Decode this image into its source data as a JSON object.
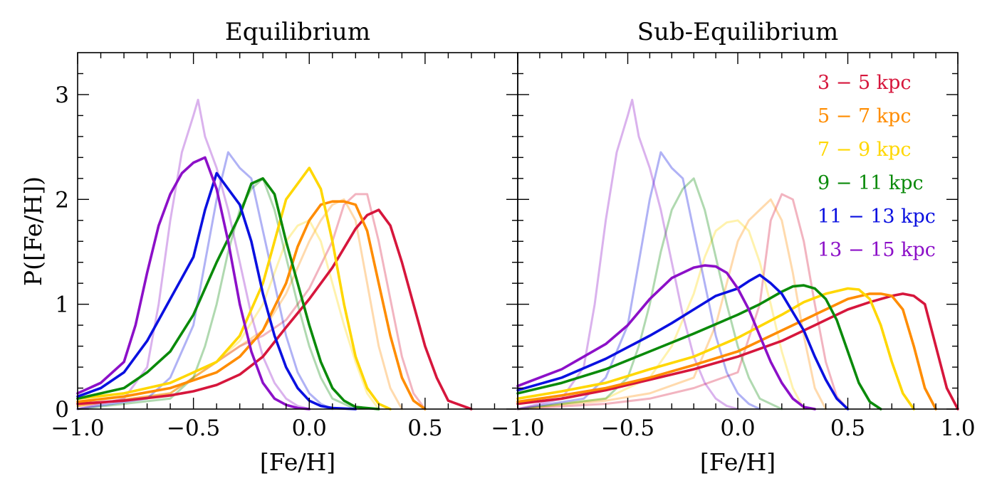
{
  "chart_data": [
    {
      "type": "line",
      "title": "Equilibrium",
      "xlabel": "[Fe/H]",
      "ylabel": "P([Fe/H])",
      "xlim": [
        -1.0,
        0.9
      ],
      "ylim": [
        0,
        3.4
      ],
      "xticks": [
        "−1.0",
        "−0.5",
        "0.0",
        "0.5"
      ],
      "yticks": [
        "0",
        "1",
        "2",
        "3"
      ],
      "grid": false,
      "series": [
        {
          "name": "3 − 5 kpc",
          "color": "#d6163c",
          "style": "solid",
          "x": [
            -1.0,
            -0.8,
            -0.6,
            -0.5,
            -0.4,
            -0.3,
            -0.2,
            -0.1,
            0.0,
            0.1,
            0.2,
            0.25,
            0.3,
            0.35,
            0.4,
            0.45,
            0.5,
            0.55,
            0.6,
            0.7
          ],
          "y": [
            0.05,
            0.08,
            0.13,
            0.17,
            0.23,
            0.33,
            0.5,
            0.78,
            1.05,
            1.35,
            1.72,
            1.85,
            1.9,
            1.75,
            1.4,
            1.0,
            0.6,
            0.3,
            0.08,
            0.0
          ]
        },
        {
          "name": "5 − 7 kpc",
          "color": "#ff8c00",
          "style": "solid",
          "x": [
            -1.0,
            -0.8,
            -0.6,
            -0.4,
            -0.3,
            -0.2,
            -0.1,
            -0.05,
            0.0,
            0.05,
            0.1,
            0.15,
            0.2,
            0.25,
            0.3,
            0.35,
            0.4,
            0.45,
            0.5
          ],
          "y": [
            0.07,
            0.12,
            0.2,
            0.35,
            0.5,
            0.75,
            1.2,
            1.55,
            1.8,
            1.95,
            1.98,
            1.98,
            1.95,
            1.7,
            1.2,
            0.7,
            0.3,
            0.08,
            0.0
          ]
        },
        {
          "name": "7 − 9 kpc",
          "color": "#ffd700",
          "style": "solid",
          "x": [
            -1.0,
            -0.8,
            -0.6,
            -0.4,
            -0.3,
            -0.2,
            -0.15,
            -0.1,
            -0.05,
            0.0,
            0.05,
            0.1,
            0.15,
            0.2,
            0.25,
            0.3,
            0.35
          ],
          "y": [
            0.1,
            0.15,
            0.25,
            0.45,
            0.7,
            1.2,
            1.6,
            2.0,
            2.15,
            2.3,
            2.1,
            1.6,
            1.0,
            0.5,
            0.2,
            0.05,
            0.0
          ]
        },
        {
          "name": "9 − 11 kpc",
          "color": "#0a8a0a",
          "style": "solid",
          "x": [
            -1.0,
            -0.8,
            -0.7,
            -0.6,
            -0.5,
            -0.4,
            -0.3,
            -0.25,
            -0.2,
            -0.15,
            -0.1,
            -0.05,
            0.0,
            0.05,
            0.1,
            0.15,
            0.2,
            0.3
          ],
          "y": [
            0.1,
            0.2,
            0.35,
            0.55,
            0.9,
            1.4,
            1.85,
            2.15,
            2.2,
            2.05,
            1.6,
            1.2,
            0.8,
            0.45,
            0.2,
            0.08,
            0.02,
            0.0
          ]
        },
        {
          "name": "11 − 13 kpc",
          "color": "#0a10e0",
          "style": "solid",
          "x": [
            -1.0,
            -0.9,
            -0.8,
            -0.7,
            -0.6,
            -0.5,
            -0.45,
            -0.4,
            -0.35,
            -0.3,
            -0.25,
            -0.2,
            -0.15,
            -0.1,
            -0.05,
            0.0,
            0.05,
            0.1,
            0.2
          ],
          "y": [
            0.12,
            0.2,
            0.35,
            0.65,
            1.05,
            1.45,
            1.9,
            2.25,
            2.1,
            1.95,
            1.6,
            1.1,
            0.7,
            0.4,
            0.2,
            0.08,
            0.03,
            0.01,
            0.0
          ]
        },
        {
          "name": "13 − 15 kpc",
          "color": "#8c10c8",
          "style": "solid",
          "x": [
            -1.0,
            -0.9,
            -0.8,
            -0.75,
            -0.7,
            -0.65,
            -0.6,
            -0.55,
            -0.5,
            -0.45,
            -0.4,
            -0.35,
            -0.3,
            -0.25,
            -0.2,
            -0.15,
            -0.1,
            -0.05,
            0.0
          ],
          "y": [
            0.15,
            0.25,
            0.45,
            0.8,
            1.3,
            1.75,
            2.05,
            2.25,
            2.35,
            2.4,
            2.1,
            1.6,
            1.0,
            0.55,
            0.25,
            0.1,
            0.04,
            0.01,
            0.0
          ]
        },
        {
          "name": "3 − 5 kpc (faint)",
          "color": "#d6163c",
          "style": "faint",
          "x": [
            -1.0,
            -0.6,
            -0.5,
            -0.4,
            -0.3,
            -0.2,
            -0.1,
            0.0,
            0.1,
            0.15,
            0.2,
            0.25,
            0.3,
            0.35,
            0.4,
            0.45,
            0.5
          ],
          "y": [
            0.03,
            0.15,
            0.3,
            0.45,
            0.6,
            0.7,
            0.85,
            1.15,
            1.6,
            1.95,
            2.05,
            2.05,
            1.6,
            1.05,
            0.5,
            0.15,
            0.0
          ]
        },
        {
          "name": "5 − 7 kpc (faint)",
          "color": "#ff8c00",
          "style": "faint",
          "x": [
            -1.0,
            -0.6,
            -0.5,
            -0.4,
            -0.3,
            -0.2,
            -0.1,
            0.0,
            0.05,
            0.1,
            0.15,
            0.2,
            0.25,
            0.3,
            0.35,
            0.4
          ],
          "y": [
            0.03,
            0.15,
            0.3,
            0.45,
            0.6,
            0.75,
            1.1,
            1.6,
            1.8,
            1.95,
            2.0,
            1.8,
            1.2,
            0.6,
            0.2,
            0.0
          ]
        },
        {
          "name": "7 − 9 kpc (faint)",
          "color": "#ffd700",
          "style": "faint",
          "x": [
            -1.0,
            -0.6,
            -0.5,
            -0.4,
            -0.3,
            -0.2,
            -0.15,
            -0.1,
            -0.05,
            0.0,
            0.05,
            0.1,
            0.15,
            0.2,
            0.25,
            0.3
          ],
          "y": [
            0.03,
            0.15,
            0.3,
            0.45,
            0.65,
            1.0,
            1.3,
            1.6,
            1.75,
            1.8,
            1.6,
            1.2,
            0.8,
            0.45,
            0.15,
            0.0
          ]
        },
        {
          "name": "9 − 11 kpc (faint)",
          "color": "#0a8a0a",
          "style": "faint",
          "x": [
            -1.0,
            -0.6,
            -0.5,
            -0.45,
            -0.4,
            -0.35,
            -0.3,
            -0.25,
            -0.2,
            -0.15,
            -0.1,
            -0.05,
            0.0,
            0.05,
            0.1,
            0.2
          ],
          "y": [
            0.0,
            0.1,
            0.3,
            0.6,
            1.0,
            1.5,
            1.9,
            2.1,
            2.2,
            1.9,
            1.45,
            1.0,
            0.6,
            0.3,
            0.1,
            0.0
          ]
        },
        {
          "name": "11 − 13 kpc (faint)",
          "color": "#0a10e0",
          "style": "faint",
          "x": [
            -1.0,
            -0.7,
            -0.6,
            -0.5,
            -0.45,
            -0.4,
            -0.35,
            -0.3,
            -0.25,
            -0.2,
            -0.15,
            -0.1,
            -0.05,
            0.0,
            0.05,
            0.1
          ],
          "y": [
            0.0,
            0.1,
            0.3,
            0.8,
            1.4,
            2.0,
            2.45,
            2.3,
            2.2,
            1.7,
            1.2,
            0.7,
            0.35,
            0.15,
            0.05,
            0.0
          ]
        },
        {
          "name": "13 − 15 kpc (faint)",
          "color": "#8c10c8",
          "style": "faint",
          "x": [
            -1.0,
            -0.8,
            -0.7,
            -0.65,
            -0.6,
            -0.55,
            -0.5,
            -0.48,
            -0.45,
            -0.4,
            -0.35,
            -0.3,
            -0.25,
            -0.2,
            -0.15,
            -0.1,
            -0.05,
            0.0
          ],
          "y": [
            0.0,
            0.1,
            0.4,
            1.0,
            1.8,
            2.45,
            2.8,
            2.95,
            2.6,
            2.3,
            1.9,
            1.4,
            0.9,
            0.5,
            0.25,
            0.1,
            0.03,
            0.0
          ]
        }
      ]
    },
    {
      "type": "line",
      "title": "Sub-Equilibrium",
      "xlabel": "[Fe/H]",
      "ylabel": "",
      "xlim": [
        -1.0,
        1.0
      ],
      "ylim": [
        0,
        3.4
      ],
      "xticks": [
        "−1.0",
        "−0.5",
        "0.0",
        "0.5",
        "1.0"
      ],
      "yticks": [],
      "grid": false,
      "legend": "top-right",
      "series": [
        {
          "name": "3 − 5 kpc",
          "color": "#d6163c",
          "style": "solid",
          "x": [
            -1.0,
            -0.8,
            -0.6,
            -0.4,
            -0.2,
            0.0,
            0.2,
            0.4,
            0.5,
            0.6,
            0.7,
            0.75,
            0.8,
            0.85,
            0.9,
            0.95,
            1.0
          ],
          "y": [
            0.05,
            0.1,
            0.18,
            0.28,
            0.38,
            0.5,
            0.65,
            0.85,
            0.95,
            1.02,
            1.08,
            1.1,
            1.08,
            1.0,
            0.6,
            0.2,
            0.0
          ]
        },
        {
          "name": "5 − 7 kpc",
          "color": "#ff8c00",
          "style": "solid",
          "x": [
            -1.0,
            -0.8,
            -0.6,
            -0.4,
            -0.2,
            0.0,
            0.2,
            0.4,
            0.5,
            0.6,
            0.65,
            0.7,
            0.75,
            0.8,
            0.85,
            0.9
          ],
          "y": [
            0.07,
            0.13,
            0.2,
            0.3,
            0.42,
            0.55,
            0.75,
            0.95,
            1.05,
            1.1,
            1.1,
            1.08,
            0.95,
            0.6,
            0.2,
            0.0
          ]
        },
        {
          "name": "7 − 9 kpc",
          "color": "#ffd700",
          "style": "solid",
          "x": [
            -1.0,
            -0.8,
            -0.6,
            -0.4,
            -0.2,
            0.0,
            0.2,
            0.3,
            0.4,
            0.5,
            0.55,
            0.6,
            0.65,
            0.7,
            0.75,
            0.8
          ],
          "y": [
            0.1,
            0.17,
            0.25,
            0.38,
            0.5,
            0.68,
            0.9,
            1.02,
            1.1,
            1.15,
            1.14,
            1.05,
            0.8,
            0.45,
            0.15,
            0.0
          ]
        },
        {
          "name": "9 − 11 kpc",
          "color": "#0a8a0a",
          "style": "solid",
          "x": [
            -1.0,
            -0.8,
            -0.6,
            -0.4,
            -0.2,
            0.0,
            0.1,
            0.2,
            0.25,
            0.3,
            0.35,
            0.4,
            0.45,
            0.5,
            0.55,
            0.6,
            0.65
          ],
          "y": [
            0.15,
            0.25,
            0.38,
            0.55,
            0.72,
            0.9,
            1.0,
            1.12,
            1.17,
            1.18,
            1.15,
            1.05,
            0.85,
            0.55,
            0.25,
            0.07,
            0.0
          ]
        },
        {
          "name": "11 − 13 kpc",
          "color": "#0a10e0",
          "style": "solid",
          "x": [
            -1.0,
            -0.8,
            -0.6,
            -0.4,
            -0.3,
            -0.2,
            -0.1,
            0.0,
            0.05,
            0.1,
            0.15,
            0.2,
            0.3,
            0.35,
            0.4,
            0.45,
            0.5
          ],
          "y": [
            0.18,
            0.3,
            0.48,
            0.7,
            0.82,
            0.95,
            1.08,
            1.15,
            1.22,
            1.28,
            1.2,
            1.1,
            0.75,
            0.5,
            0.28,
            0.1,
            0.0
          ]
        },
        {
          "name": "13 − 15 kpc",
          "color": "#8c10c8",
          "style": "solid",
          "x": [
            -1.0,
            -0.8,
            -0.6,
            -0.5,
            -0.4,
            -0.3,
            -0.2,
            -0.15,
            -0.1,
            -0.05,
            0.0,
            0.05,
            0.1,
            0.15,
            0.2,
            0.25,
            0.3,
            0.35
          ],
          "y": [
            0.22,
            0.38,
            0.62,
            0.8,
            1.05,
            1.25,
            1.35,
            1.37,
            1.36,
            1.3,
            1.15,
            0.95,
            0.7,
            0.45,
            0.25,
            0.1,
            0.02,
            0.0
          ]
        },
        {
          "name": "3 − 5 kpc (faint)",
          "color": "#d6163c",
          "style": "faint",
          "x": [
            -1.0,
            -0.6,
            -0.4,
            -0.2,
            0.0,
            0.1,
            0.15,
            0.2,
            0.25,
            0.3,
            0.35,
            0.4,
            0.45,
            0.5
          ],
          "y": [
            0.0,
            0.05,
            0.1,
            0.2,
            0.35,
            1.0,
            1.8,
            2.05,
            2.0,
            1.6,
            1.0,
            0.45,
            0.12,
            0.0
          ]
        },
        {
          "name": "5 − 7 kpc (faint)",
          "color": "#ff8c00",
          "style": "faint",
          "x": [
            -1.0,
            -0.6,
            -0.4,
            -0.2,
            -0.1,
            0.0,
            0.05,
            0.1,
            0.15,
            0.2,
            0.25,
            0.3,
            0.35,
            0.4
          ],
          "y": [
            0.0,
            0.08,
            0.15,
            0.3,
            0.8,
            1.6,
            1.8,
            1.9,
            2.0,
            1.8,
            1.3,
            0.7,
            0.2,
            0.0
          ]
        },
        {
          "name": "7 − 9 kpc (faint)",
          "color": "#ffd700",
          "style": "faint",
          "x": [
            -1.0,
            -0.6,
            -0.4,
            -0.3,
            -0.2,
            -0.15,
            -0.1,
            -0.05,
            0.0,
            0.05,
            0.1,
            0.15,
            0.2,
            0.25,
            0.3
          ],
          "y": [
            0.0,
            0.1,
            0.3,
            0.6,
            1.1,
            1.45,
            1.7,
            1.78,
            1.8,
            1.7,
            1.4,
            1.0,
            0.55,
            0.2,
            0.0
          ]
        },
        {
          "name": "9 − 11 kpc (faint)",
          "color": "#0a8a0a",
          "style": "faint",
          "x": [
            -1.0,
            -0.6,
            -0.5,
            -0.45,
            -0.4,
            -0.35,
            -0.3,
            -0.25,
            -0.2,
            -0.15,
            -0.1,
            -0.05,
            0.0,
            0.05,
            0.1,
            0.2
          ],
          "y": [
            0.0,
            0.1,
            0.3,
            0.6,
            1.0,
            1.5,
            1.9,
            2.1,
            2.2,
            1.9,
            1.45,
            1.0,
            0.6,
            0.3,
            0.1,
            0.0
          ]
        },
        {
          "name": "11 − 13 kpc (faint)",
          "color": "#0a10e0",
          "style": "faint",
          "x": [
            -1.0,
            -0.7,
            -0.6,
            -0.5,
            -0.45,
            -0.4,
            -0.35,
            -0.3,
            -0.25,
            -0.2,
            -0.15,
            -0.1,
            -0.05,
            0.0,
            0.05,
            0.1
          ],
          "y": [
            0.0,
            0.1,
            0.3,
            0.8,
            1.4,
            2.0,
            2.45,
            2.3,
            2.2,
            1.7,
            1.2,
            0.7,
            0.35,
            0.15,
            0.05,
            0.0
          ]
        },
        {
          "name": "13 − 15 kpc (faint)",
          "color": "#8c10c8",
          "style": "faint",
          "x": [
            -1.0,
            -0.8,
            -0.7,
            -0.65,
            -0.6,
            -0.55,
            -0.5,
            -0.48,
            -0.45,
            -0.4,
            -0.35,
            -0.3,
            -0.25,
            -0.2,
            -0.15,
            -0.1,
            -0.05,
            0.0
          ],
          "y": [
            0.0,
            0.1,
            0.4,
            1.0,
            1.8,
            2.45,
            2.8,
            2.95,
            2.6,
            2.3,
            1.9,
            1.4,
            0.9,
            0.5,
            0.25,
            0.1,
            0.03,
            0.0
          ]
        }
      ]
    }
  ]
}
